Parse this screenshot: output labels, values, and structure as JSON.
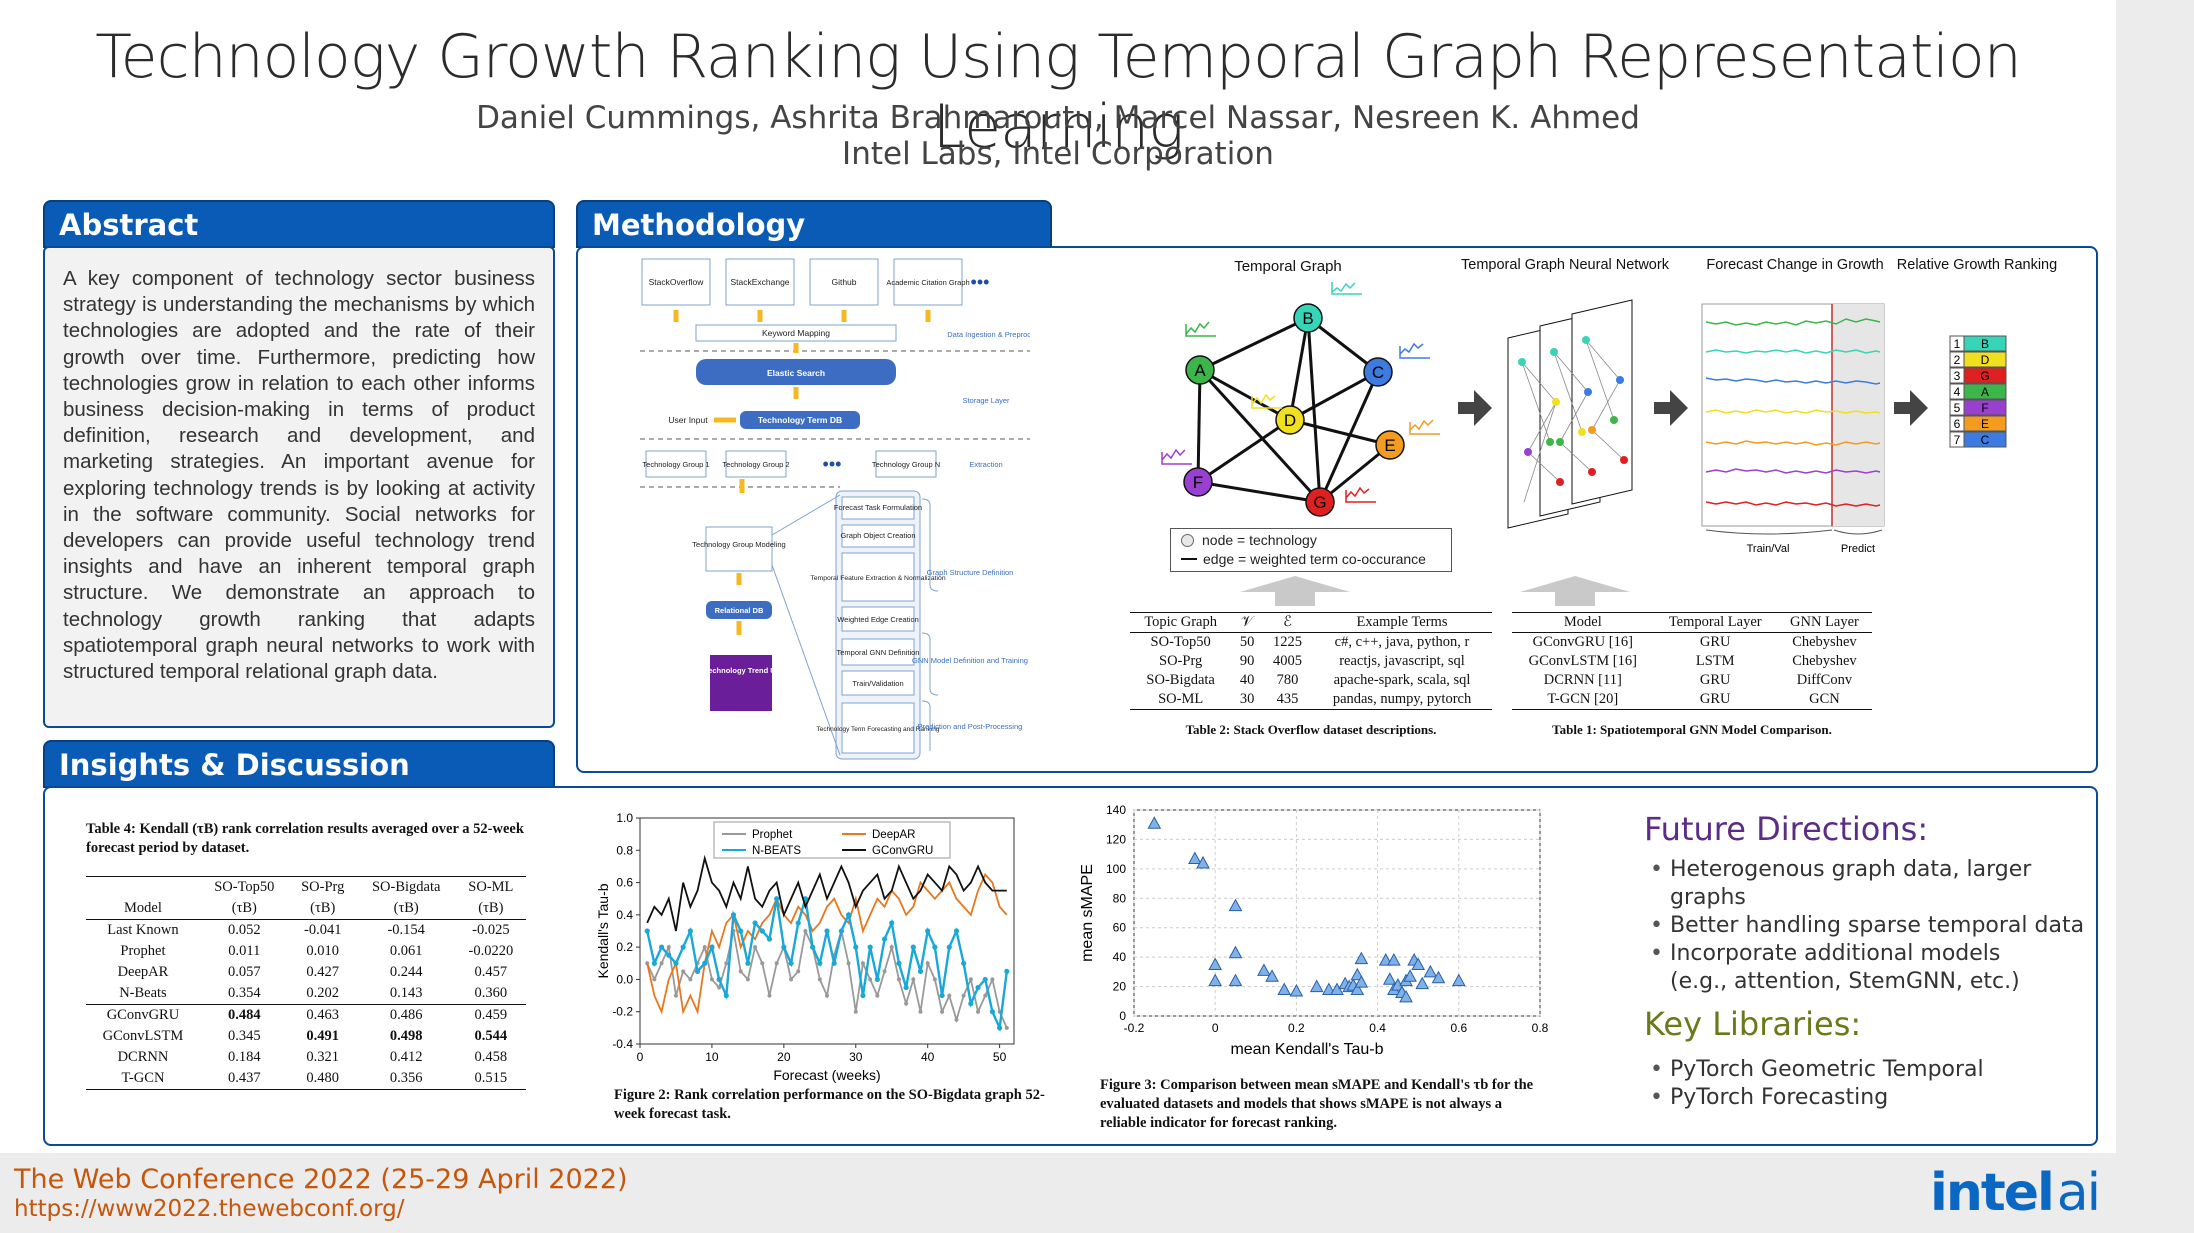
{
  "header": {
    "title": "Technology Growth Ranking Using Temporal Graph Representation Learning",
    "authors": "Daniel Cummings, Ashrita Brahmaroutu, Marcel Nassar, Nesreen K. Ahmed",
    "affiliation": "Intel Labs, Intel Corporation"
  },
  "sections": {
    "abstract": "Abstract",
    "methodology": "Methodology",
    "insights": "Insights & Discussion"
  },
  "abstract_text": "A key component of technology sector business strategy is understanding the mechanisms by which technologies are adopted and the rate of their growth over time. Furthermore, predicting how technologies grow in relation to each other informs business decision-making in terms of product definition, research and development, and marketing strategies. An important avenue for exploring technology trends is by looking at activity in the software community. Social networks for developers can provide useful technology trend insights and have an inherent temporal graph structure. We demonstrate an approach to technology growth ranking that adapts spatiotemporal graph neural networks to work with structured temporal relational graph data.",
  "flow": {
    "sources": [
      "StackOverflow",
      "StackExchange",
      "Github",
      "Academic Citation Graph"
    ],
    "keyword_mapping": "Keyword Mapping",
    "ingestion_label": "Data Ingestion & Preprocessing",
    "elastic": "Elastic Search",
    "user_input": "User Input",
    "term_db": "Technology Term DB",
    "storage_label": "Storage Layer",
    "groups": [
      "Technology Group 1",
      "Technology Group 2",
      "Technology Group N"
    ],
    "extraction_label": "Extraction",
    "group_modeling": "Technology Group Modeling",
    "relational_db": "Relational DB",
    "trend_ui": "Technology Trend UI",
    "steps": [
      "Forecast Task Formulation",
      "Graph Object Creation",
      "Temporal Feature Extraction & Normalization",
      "Weighted Edge Creation",
      "Temporal GNN Definition",
      "Train/Validation",
      "Technology Term Forecasting and Ranking"
    ],
    "step_labels": [
      "Graph Structure Definition",
      "GNN Model Definition and Training",
      "Prediction and Post-Processing"
    ]
  },
  "pipeline": {
    "temporal_graph": "Temporal Graph",
    "tgnn": "Temporal Graph Neural Network",
    "forecast": "Forecast Change in Growth",
    "ranking": "Relative Growth Ranking",
    "train_val": "Train/Val",
    "predict": "Predict",
    "legend_node": "node = technology",
    "legend_edge": "edge = weighted term co-occurance",
    "nodes": [
      "A",
      "B",
      "C",
      "D",
      "E",
      "F",
      "G"
    ],
    "rank_letters": [
      "B",
      "D",
      "G",
      "A",
      "F",
      "E",
      "C"
    ],
    "rank_numbers": [
      "1",
      "2",
      "3",
      "4",
      "5",
      "6",
      "7"
    ],
    "colors": {
      "A": "#3cb54a",
      "B": "#38d4b8",
      "C": "#3d7be0",
      "D": "#f0e020",
      "E": "#f39c20",
      "F": "#9a40d0",
      "G": "#e02020"
    }
  },
  "table2": {
    "headers": [
      "Topic Graph",
      "𝒱",
      "ℰ",
      "Example Terms"
    ],
    "rows": [
      [
        "SO-Top50",
        "50",
        "1225",
        "c#, c++, java, python, r"
      ],
      [
        "SO-Prg",
        "90",
        "4005",
        "reactjs, javascript, sql"
      ],
      [
        "SO-Bigdata",
        "40",
        "780",
        "apache-spark, scala, sql"
      ],
      [
        "SO-ML",
        "30",
        "435",
        "pandas, numpy, pytorch"
      ]
    ],
    "caption": "Table 2: Stack Overflow dataset descriptions."
  },
  "table1": {
    "headers": [
      "Model",
      "Temporal Layer",
      "GNN Layer"
    ],
    "rows": [
      [
        "GConvGRU [16]",
        "GRU",
        "Chebyshev"
      ],
      [
        "GConvLSTM [16]",
        "LSTM",
        "Chebyshev"
      ],
      [
        "DCRNN [11]",
        "GRU",
        "DiffConv"
      ],
      [
        "T-GCN [20]",
        "GRU",
        "GCN"
      ]
    ],
    "caption": "Table 1: Spatiotemporal GNN Model Comparison."
  },
  "table4": {
    "caption": "Table 4: Kendall (τB) rank correlation results averaged over a 52-week forecast period by dataset.",
    "headers": [
      "Model",
      "SO-Top50",
      "SO-Prg",
      "SO-Bigdata",
      "SO-ML"
    ],
    "subheader": "(τB)",
    "rows": [
      [
        "Last Known",
        "0.052",
        "-0.041",
        "-0.154",
        "-0.025"
      ],
      [
        "Prophet",
        "0.011",
        "0.010",
        "0.061",
        "-0.0220"
      ],
      [
        "DeepAR",
        "0.057",
        "0.427",
        "0.244",
        "0.457"
      ],
      [
        "N-Beats",
        "0.354",
        "0.202",
        "0.143",
        "0.360"
      ],
      [
        "GConvGRU",
        "0.484",
        "0.463",
        "0.486",
        "0.459"
      ],
      [
        "GConvLSTM",
        "0.345",
        "0.491",
        "0.498",
        "0.544"
      ],
      [
        "DCRNN",
        "0.184",
        "0.321",
        "0.412",
        "0.458"
      ],
      [
        "T-GCN",
        "0.437",
        "0.480",
        "0.356",
        "0.515"
      ]
    ]
  },
  "chart_data": [
    {
      "type": "line",
      "xlabel": "Forecast (weeks)",
      "ylabel": "Kendall's Tau-b",
      "xlim": [
        0,
        52
      ],
      "ylim": [
        -0.4,
        1.0
      ],
      "xticks": [
        "0",
        "10",
        "20",
        "30",
        "40",
        "50"
      ],
      "yticks": [
        "-0.4",
        "-0.2",
        "0.0",
        "0.2",
        "0.4",
        "0.6",
        "0.8",
        "1.0"
      ],
      "legend": "top-center",
      "x": [
        1,
        2,
        3,
        4,
        5,
        6,
        7,
        8,
        9,
        10,
        11,
        12,
        13,
        14,
        15,
        16,
        17,
        18,
        19,
        20,
        21,
        22,
        23,
        24,
        25,
        26,
        27,
        28,
        29,
        30,
        31,
        32,
        33,
        34,
        35,
        36,
        37,
        38,
        39,
        40,
        41,
        42,
        43,
        44,
        45,
        46,
        47,
        48,
        49,
        50,
        51
      ],
      "series": [
        {
          "name": "Prophet",
          "color": "#999999",
          "values": [
            0.1,
            0.0,
            0.1,
            0.2,
            -0.1,
            0.05,
            0.0,
            0.1,
            0.2,
            0.0,
            -0.05,
            0.1,
            0.3,
            0.05,
            0.0,
            0.2,
            0.1,
            -0.1,
            0.1,
            0.2,
            0.0,
            0.05,
            0.3,
            0.2,
            0.0,
            -0.1,
            0.15,
            0.3,
            0.1,
            -0.2,
            0.1,
            0.0,
            -0.1,
            0.05,
            0.2,
            0.0,
            -0.15,
            0.0,
            -0.2,
            0.1,
            0.0,
            -0.2,
            -0.1,
            -0.25,
            -0.1,
            0.0,
            -0.2,
            -0.1,
            0.0,
            -0.2,
            -0.3
          ]
        },
        {
          "name": "DeepAR",
          "color": "#e8771e",
          "values": [
            0.1,
            -0.1,
            -0.2,
            0.0,
            0.1,
            -0.2,
            -0.1,
            -0.2,
            0.1,
            0.3,
            0.2,
            0.35,
            0.4,
            0.2,
            0.3,
            0.25,
            0.35,
            0.4,
            0.5,
            0.4,
            0.35,
            0.45,
            0.4,
            0.3,
            0.35,
            0.45,
            0.5,
            0.4,
            0.35,
            0.5,
            0.3,
            0.4,
            0.5,
            0.45,
            0.55,
            0.5,
            0.4,
            0.45,
            0.6,
            0.55,
            0.5,
            0.55,
            0.6,
            0.5,
            0.45,
            0.4,
            0.55,
            0.65,
            0.6,
            0.45,
            0.4
          ]
        },
        {
          "name": "N-BEATS",
          "color": "#19a8d8",
          "values": [
            0.3,
            0.1,
            0.2,
            0.15,
            0.1,
            0.2,
            0.3,
            0.05,
            0.1,
            0.2,
            0.0,
            -0.1,
            0.4,
            0.3,
            0.1,
            0.35,
            0.3,
            0.25,
            0.5,
            0.2,
            0.1,
            0.35,
            0.5,
            0.2,
            0.1,
            0.3,
            0.1,
            0.3,
            0.4,
            0.2,
            -0.1,
            0.2,
            0.0,
            0.25,
            0.35,
            0.1,
            -0.05,
            0.2,
            0.05,
            0.3,
            0.2,
            -0.1,
            0.2,
            0.3,
            0.1,
            -0.15,
            -0.05,
            0.0,
            -0.2,
            -0.3,
            0.05
          ]
        },
        {
          "name": "GConvGRU",
          "color": "#111111",
          "values": [
            0.35,
            0.45,
            0.4,
            0.5,
            0.3,
            0.6,
            0.45,
            0.55,
            0.75,
            0.6,
            0.55,
            0.45,
            0.6,
            0.5,
            0.7,
            0.5,
            0.45,
            0.55,
            0.6,
            0.4,
            0.5,
            0.6,
            0.45,
            0.55,
            0.65,
            0.5,
            0.6,
            0.7,
            0.6,
            0.45,
            0.55,
            0.6,
            0.65,
            0.5,
            0.55,
            0.7,
            0.6,
            0.5,
            0.55,
            0.65,
            0.6,
            0.55,
            0.7,
            0.65,
            0.55,
            0.6,
            0.7,
            0.6,
            0.55,
            0.55,
            0.55
          ]
        }
      ]
    },
    {
      "type": "scatter",
      "xlabel": "mean Kendall's Tau-b",
      "ylabel": "mean sMAPE",
      "xlim": [
        -0.2,
        0.8
      ],
      "ylim": [
        0,
        140
      ],
      "xticks": [
        "-0.2",
        "0",
        "0.2",
        "0.4",
        "0.6",
        "0.8"
      ],
      "yticks": [
        "0",
        "20",
        "40",
        "60",
        "80",
        "100",
        "120",
        "140"
      ],
      "points": [
        [
          -0.15,
          131
        ],
        [
          -0.05,
          107
        ],
        [
          -0.03,
          104
        ],
        [
          0.0,
          35
        ],
        [
          0.0,
          24
        ],
        [
          0.05,
          75
        ],
        [
          0.05,
          43
        ],
        [
          0.05,
          24
        ],
        [
          0.12,
          31
        ],
        [
          0.14,
          27
        ],
        [
          0.17,
          18
        ],
        [
          0.2,
          17
        ],
        [
          0.25,
          20
        ],
        [
          0.28,
          18
        ],
        [
          0.3,
          18
        ],
        [
          0.32,
          22
        ],
        [
          0.33,
          20
        ],
        [
          0.34,
          21
        ],
        [
          0.35,
          18
        ],
        [
          0.35,
          28
        ],
        [
          0.36,
          23
        ],
        [
          0.36,
          39
        ],
        [
          0.42,
          38
        ],
        [
          0.44,
          38
        ],
        [
          0.43,
          25
        ],
        [
          0.44,
          18
        ],
        [
          0.45,
          21
        ],
        [
          0.46,
          16
        ],
        [
          0.47,
          13
        ],
        [
          0.47,
          24
        ],
        [
          0.48,
          27
        ],
        [
          0.49,
          38
        ],
        [
          0.5,
          35
        ],
        [
          0.51,
          22
        ],
        [
          0.53,
          30
        ],
        [
          0.55,
          26
        ],
        [
          0.6,
          24
        ]
      ]
    }
  ],
  "fig2_caption": "Figure 2: Rank correlation performance on the SO-Bigdata graph 52-week forecast task.",
  "fig3_caption": "Figure 3: Comparison between mean sMAPE and Kendall's τb for the evaluated datasets and models that shows sMAPE is not always a reliable indicator for forecast ranking.",
  "future": {
    "title": "Future Directions:",
    "items": [
      "Heterogenous graph data, larger graphs",
      "Better handling sparse temporal data",
      "Incorporate additional models"
    ],
    "item3_line2": "(e.g., attention, StemGNN, etc.)"
  },
  "libs": {
    "title": "Key Libraries:",
    "items": [
      "PyTorch Geometric Temporal",
      "PyTorch Forecasting"
    ]
  },
  "footer": {
    "conference": "The Web Conference 2022 (25-29 April 2022)",
    "url": "https://www2022.thewebconf.org/",
    "logo_intel": "intel",
    "logo_ai": "ai"
  }
}
